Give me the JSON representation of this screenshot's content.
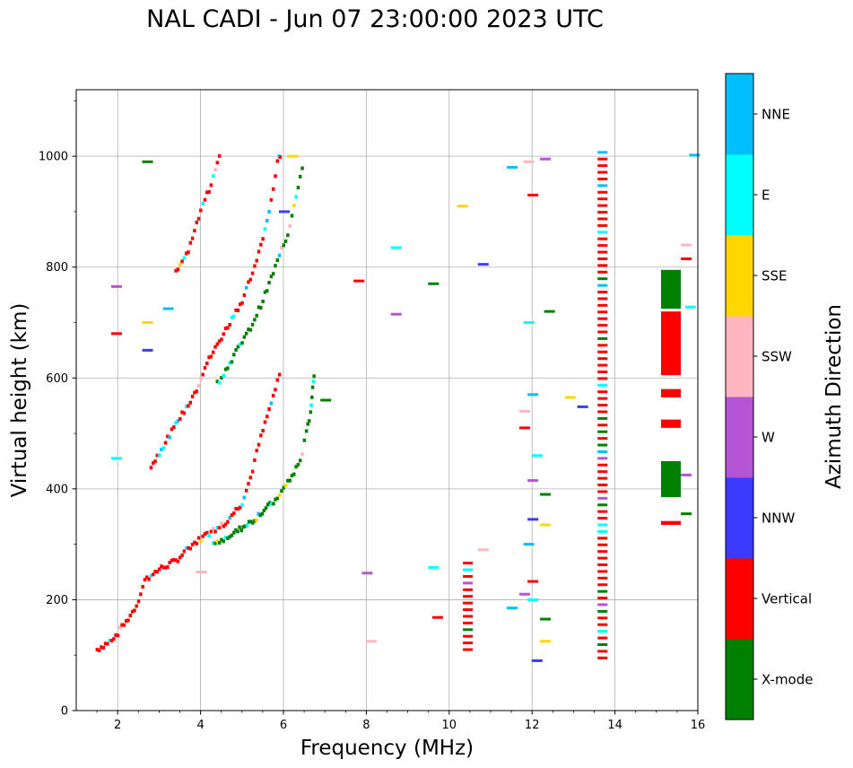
{
  "chart_data": {
    "type": "scatter",
    "title": "NAL CADI - Jun 07 23:00:00 2023 UTC",
    "xlabel": "Frequency (MHz)",
    "ylabel": "Virtual height (km)",
    "xlim": [
      1.0,
      16.0
    ],
    "ylim": [
      0,
      1120
    ],
    "xticks": [
      2,
      4,
      6,
      8,
      10,
      12,
      14,
      16
    ],
    "yticks": [
      0,
      200,
      400,
      600,
      800,
      1000
    ],
    "grid": true,
    "colorbar": {
      "label": "Azimuth Direction",
      "categories": [
        {
          "name": "X-mode",
          "color": "#008000"
        },
        {
          "name": "Vertical",
          "color": "#ff0000"
        },
        {
          "name": "NNW",
          "color": "#3b3bff"
        },
        {
          "name": "W",
          "color": "#b455d6"
        },
        {
          "name": "SSW",
          "color": "#ffb6c1"
        },
        {
          "name": "SSE",
          "color": "#ffd700"
        },
        {
          "name": "E",
          "color": "#00ffff"
        },
        {
          "name": "NNE",
          "color": "#00bfff"
        }
      ]
    },
    "traces": [
      {
        "category": "Vertical",
        "points": [
          [
            1.5,
            110
          ],
          [
            1.8,
            125
          ],
          [
            2.0,
            140
          ],
          [
            2.2,
            160
          ],
          [
            2.45,
            190
          ],
          [
            2.65,
            235
          ],
          [
            3.0,
            255
          ],
          [
            3.4,
            270
          ],
          [
            3.8,
            300
          ],
          [
            4.2,
            320
          ],
          [
            4.6,
            340
          ],
          [
            5.0,
            375
          ],
          [
            5.2,
            420
          ],
          [
            5.4,
            480
          ],
          [
            5.6,
            530
          ],
          [
            5.8,
            580
          ],
          [
            5.95,
            620
          ]
        ]
      },
      {
        "category": "X-mode",
        "points": [
          [
            4.3,
            300
          ],
          [
            4.8,
            320
          ],
          [
            5.3,
            345
          ],
          [
            5.8,
            380
          ],
          [
            6.1,
            410
          ],
          [
            6.4,
            450
          ],
          [
            6.55,
            500
          ],
          [
            6.65,
            540
          ],
          [
            6.7,
            580
          ],
          [
            6.75,
            620
          ]
        ]
      },
      {
        "category": "Vertical",
        "points": [
          [
            2.8,
            440
          ],
          [
            3.2,
            490
          ],
          [
            3.6,
            540
          ],
          [
            3.9,
            580
          ],
          [
            4.1,
            620
          ],
          [
            4.4,
            660
          ],
          [
            4.7,
            700
          ],
          [
            5.0,
            740
          ],
          [
            5.3,
            800
          ],
          [
            5.5,
            850
          ],
          [
            5.7,
            920
          ],
          [
            5.85,
            990
          ],
          [
            5.95,
            1010
          ]
        ]
      },
      {
        "category": "X-mode",
        "points": [
          [
            4.4,
            590
          ],
          [
            4.8,
            640
          ],
          [
            5.2,
            690
          ],
          [
            5.5,
            740
          ],
          [
            5.8,
            800
          ],
          [
            6.1,
            860
          ],
          [
            6.3,
            930
          ],
          [
            6.5,
            1000
          ]
        ]
      },
      {
        "category": "Vertical",
        "points": [
          [
            3.4,
            790
          ],
          [
            3.7,
            830
          ],
          [
            4.0,
            900
          ],
          [
            4.3,
            960
          ],
          [
            4.5,
            1010
          ]
        ]
      }
    ],
    "column_blocks": [
      {
        "freq": 13.7,
        "category": "Vertical",
        "y_range": [
          95,
          1015
        ]
      },
      {
        "freq": 10.45,
        "category": "Vertical",
        "y_range": [
          110,
          270
        ]
      },
      {
        "freq": 15.35,
        "category": "X-mode",
        "y_range": [
          385,
          450
        ]
      },
      {
        "freq": 15.35,
        "category": "Vertical",
        "y_range": [
          510,
          525
        ]
      },
      {
        "freq": 15.35,
        "category": "Vertical",
        "y_range": [
          565,
          580
        ]
      },
      {
        "freq": 15.35,
        "category": "Vertical",
        "y_range": [
          605,
          720
        ]
      },
      {
        "freq": 15.35,
        "category": "X-mode",
        "y_range": [
          725,
          795
        ]
      },
      {
        "freq": 15.35,
        "category": "Vertical",
        "y_range": [
          335,
          342
        ]
      }
    ]
  }
}
